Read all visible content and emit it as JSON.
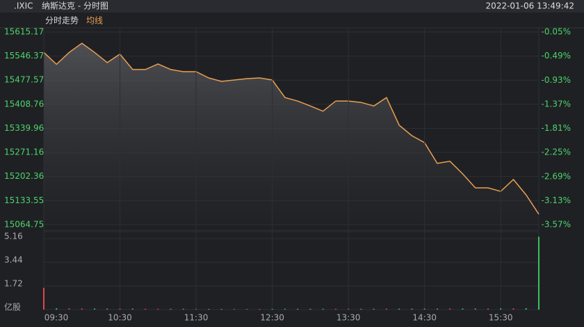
{
  "header": {
    "symbol": ".IXIC",
    "name": "纳斯达克 - 分时图",
    "datetime": "2022-01-06 13:49:42",
    "tabs": [
      "分时走势"
    ]
  },
  "chart_data": [
    {
      "type": "line",
      "x": [
        "09:30",
        "09:40",
        "09:50",
        "10:00",
        "10:10",
        "10:20",
        "10:30",
        "10:40",
        "10:50",
        "11:00",
        "11:10",
        "11:20",
        "11:30",
        "11:40",
        "11:50",
        "12:00",
        "12:10",
        "12:20",
        "12:30",
        "12:40",
        "12:50",
        "13:00",
        "13:10",
        "13:20",
        "13:30",
        "13:40",
        "13:50",
        "14:00",
        "14:10",
        "14:20",
        "14:30",
        "14:40",
        "14:50",
        "15:00",
        "15:10",
        "15:20",
        "15:30",
        "15:40",
        "15:50",
        "16:00"
      ],
      "series": [
        {
          "name": "均线",
          "color": "#e8a050",
          "values": [
            15557,
            15523,
            15557,
            15583,
            15557,
            15528,
            15552,
            15508,
            15508,
            15524,
            15508,
            15502,
            15502,
            15484,
            15474,
            15478,
            15482,
            15484,
            15478,
            15428,
            15418,
            15404,
            15389,
            15418,
            15418,
            15414,
            15404,
            15428,
            15349,
            15319,
            15299,
            15240,
            15246,
            15210,
            15170,
            15170,
            15160,
            15194,
            15150,
            15095
          ]
        }
      ],
      "ylim": [
        15064.75,
        15615.17
      ],
      "yticks": [
        15064.75,
        15133.55,
        15202.36,
        15271.16,
        15339.96,
        15408.76,
        15477.57,
        15546.37,
        15615.17
      ],
      "y2lim": [
        -3.57,
        -0.05
      ],
      "y2ticks": [
        {
          "value": -3.57,
          "label": "-3.57%"
        },
        {
          "value": -3.13,
          "label": "-3.13%"
        },
        {
          "value": -2.69,
          "label": "-2.69%"
        },
        {
          "value": -2.25,
          "label": "-2.25%"
        },
        {
          "value": -1.81,
          "label": "-1.81%"
        },
        {
          "value": -1.37,
          "label": "-1.37%"
        },
        {
          "value": -0.93,
          "label": "-0.93%"
        },
        {
          "value": -0.49,
          "label": "-0.49%"
        },
        {
          "value": -0.05,
          "label": "-0.05%"
        }
      ],
      "grid": true
    },
    {
      "type": "bar",
      "categories": [
        "09:30",
        "09:40",
        "09:50",
        "10:00",
        "10:10",
        "10:20",
        "10:30",
        "10:40",
        "10:50",
        "11:00",
        "11:10",
        "11:20",
        "11:30",
        "11:40",
        "11:50",
        "12:00",
        "12:10",
        "12:20",
        "12:30",
        "12:40",
        "12:50",
        "13:00",
        "13:10",
        "13:20",
        "13:30",
        "13:40",
        "13:50",
        "14:00",
        "14:10",
        "14:20",
        "14:30",
        "14:40",
        "14:50",
        "15:00",
        "15:10",
        "15:20",
        "15:30",
        "15:40",
        "15:50",
        "16:00"
      ],
      "values": [
        1.58,
        0.1,
        0.09,
        0.08,
        0.08,
        0.07,
        0.07,
        0.07,
        0.06,
        0.06,
        0.06,
        0.06,
        0.05,
        0.05,
        0.05,
        0.05,
        0.05,
        0.05,
        0.05,
        0.06,
        0.06,
        0.06,
        0.06,
        0.06,
        0.06,
        0.06,
        0.06,
        0.07,
        0.07,
        0.07,
        0.07,
        0.07,
        0.08,
        0.08,
        0.08,
        0.08,
        0.09,
        0.09,
        0.1,
        5.3
      ],
      "up_color": "#e04848",
      "down_color": "#3cc060",
      "ylim": [
        0,
        5.16
      ],
      "yticks": [
        {
          "value": 0,
          "label": "亿股"
        },
        1.72,
        3.44,
        5.16
      ],
      "xticks": [
        "09:30",
        "10:30",
        "11:30",
        "12:30",
        "13:30",
        "14:30",
        "15:30"
      ]
    }
  ]
}
